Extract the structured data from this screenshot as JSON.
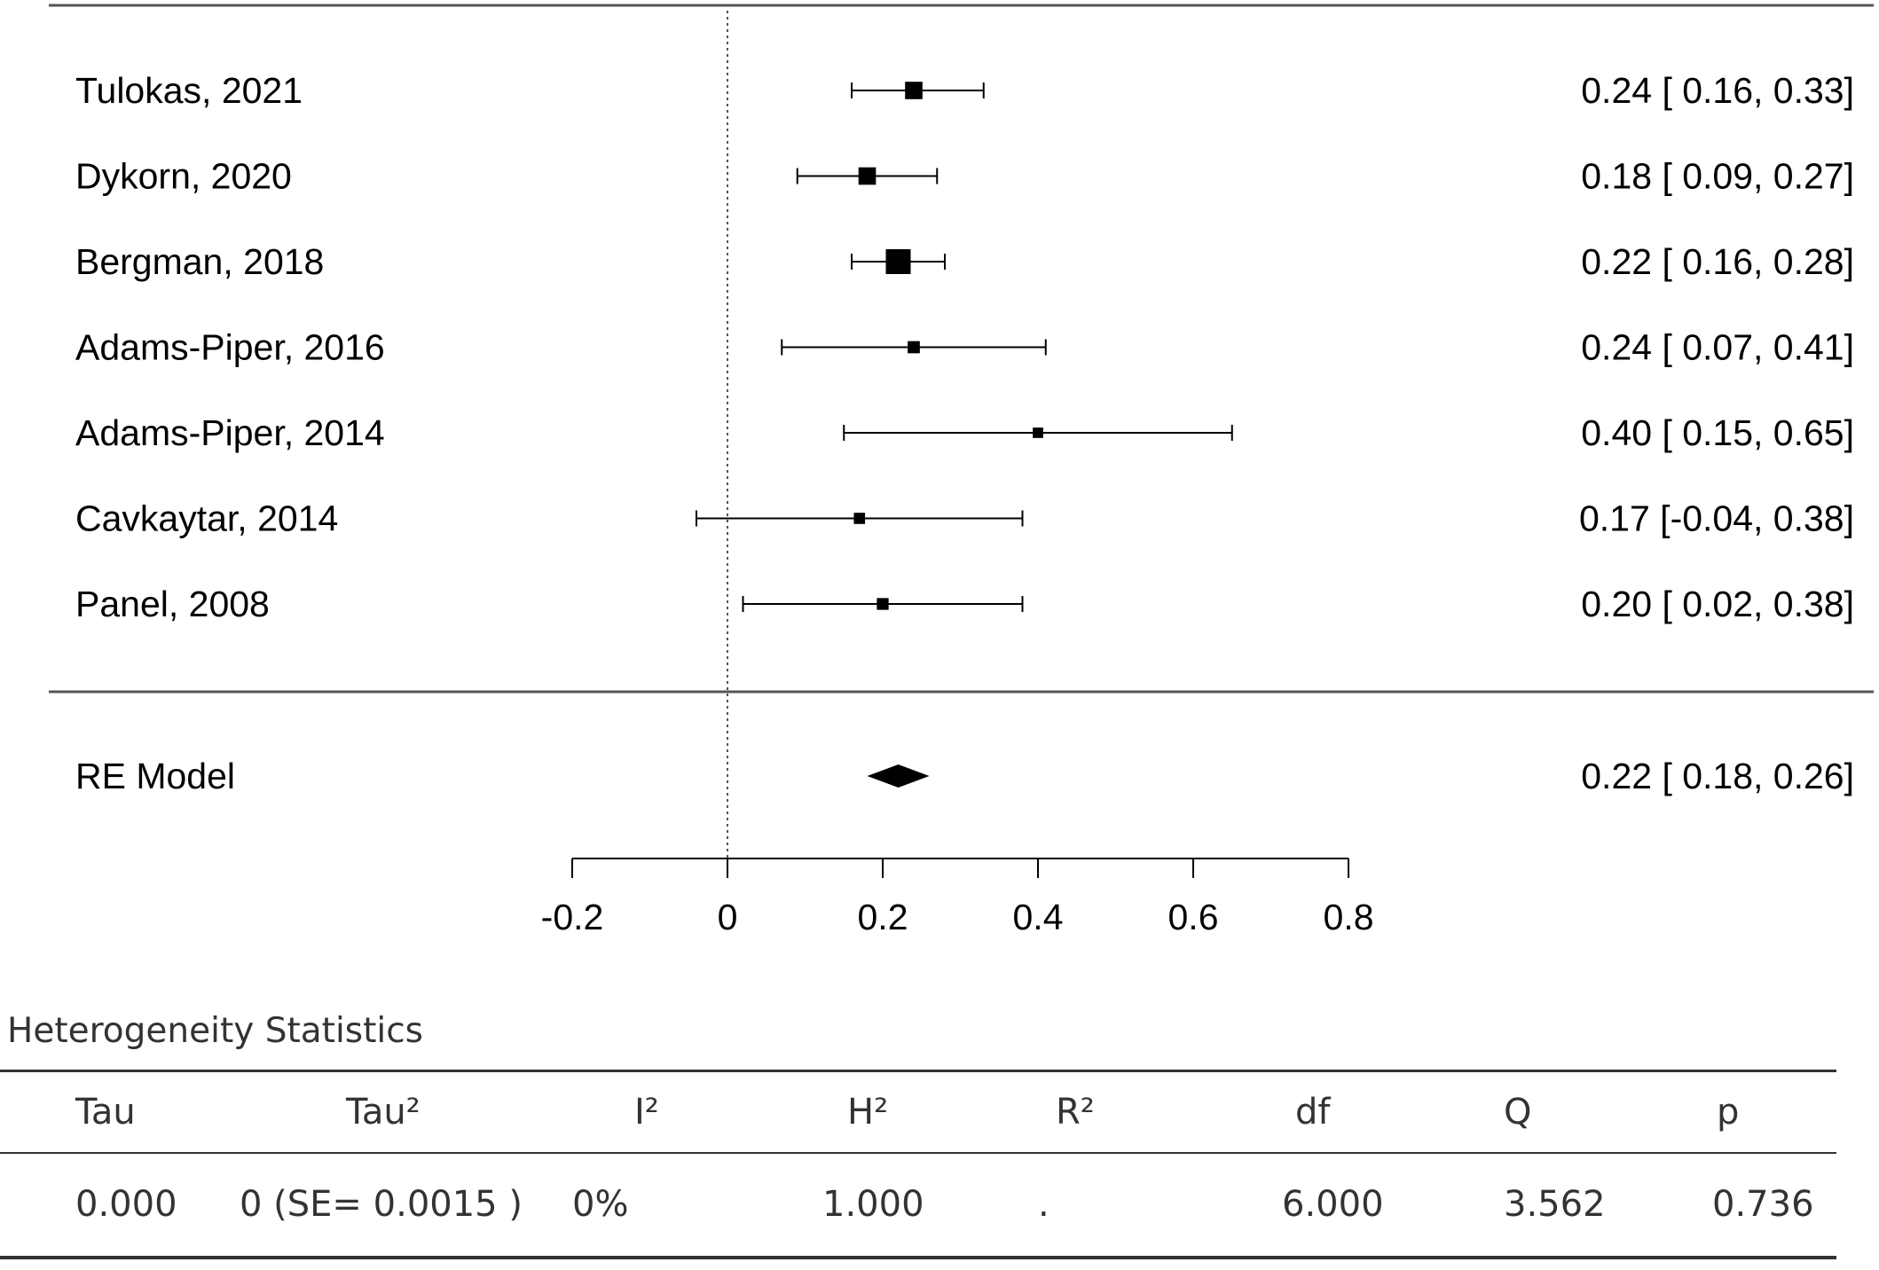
{
  "chart_data": {
    "type": "forest",
    "studies": [
      {
        "label": "Tulokas, 2021",
        "estimate": 0.24,
        "ci_low": 0.16,
        "ci_high": 0.33,
        "weight": 0.62,
        "text": "0.24 [ 0.16, 0.33]"
      },
      {
        "label": "Dykorn, 2020",
        "estimate": 0.18,
        "ci_low": 0.09,
        "ci_high": 0.27,
        "weight": 0.62,
        "text": "0.18 [ 0.09, 0.27]"
      },
      {
        "label": "Bergman, 2018",
        "estimate": 0.22,
        "ci_low": 0.16,
        "ci_high": 0.28,
        "weight": 1.0,
        "text": "0.22 [ 0.16, 0.28]"
      },
      {
        "label": "Adams-Piper, 2016",
        "estimate": 0.24,
        "ci_low": 0.07,
        "ci_high": 0.41,
        "weight": 0.35,
        "text": "0.24 [ 0.07, 0.41]"
      },
      {
        "label": "Adams-Piper, 2014",
        "estimate": 0.4,
        "ci_low": 0.15,
        "ci_high": 0.65,
        "weight": 0.26,
        "text": "0.40 [ 0.15, 0.65]"
      },
      {
        "label": "Cavkaytar, 2014",
        "estimate": 0.17,
        "ci_low": -0.04,
        "ci_high": 0.38,
        "weight": 0.3,
        "text": "0.17 [-0.04, 0.38]"
      },
      {
        "label": "Panel, 2008",
        "estimate": 0.2,
        "ci_low": 0.02,
        "ci_high": 0.38,
        "weight": 0.33,
        "text": "0.20 [ 0.02, 0.38]"
      }
    ],
    "summary": {
      "label": "RE Model",
      "estimate": 0.22,
      "ci_low": 0.18,
      "ci_high": 0.26,
      "text": "0.22 [ 0.18, 0.26]"
    },
    "reference_line": 0,
    "xlim": [
      -0.2,
      0.8
    ],
    "xticks": [
      -0.2,
      0,
      0.2,
      0.4,
      0.6,
      0.8
    ],
    "xtick_labels": [
      "-0.2",
      "0",
      "0.2",
      "0.4",
      "0.6",
      "0.8"
    ]
  },
  "heterogeneity": {
    "title": "Heterogeneity Statistics",
    "columns": [
      "Tau",
      "Tau²",
      "I²",
      "H²",
      "R²",
      "df",
      "Q",
      "p"
    ],
    "row": [
      "0.000",
      "0 (SE= 0.0015 )",
      "0%",
      "1.000",
      ".",
      "6.000",
      "3.562",
      "0.736"
    ]
  }
}
